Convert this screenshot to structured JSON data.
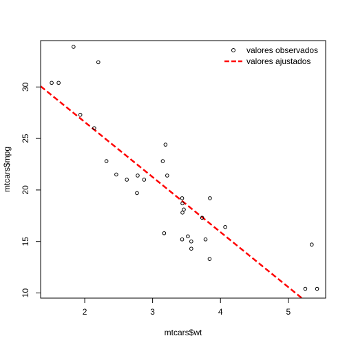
{
  "chart_data": {
    "type": "scatter",
    "title": "",
    "xlabel": "mtcars$wt",
    "ylabel": "mtcars$mpg",
    "xlim": [
      1.35,
      5.55
    ],
    "ylim": [
      9.5,
      34.5
    ],
    "x_ticks": [
      2,
      3,
      4,
      5
    ],
    "y_ticks": [
      10,
      15,
      20,
      25,
      30
    ],
    "grid": false,
    "legend_position": "top-right",
    "series": [
      {
        "name": "valores observados",
        "kind": "points",
        "marker": "open-circle",
        "color": "#000000",
        "points": [
          [
            1.513,
            30.4
          ],
          [
            1.615,
            30.4
          ],
          [
            1.835,
            33.9
          ],
          [
            1.935,
            27.3
          ],
          [
            2.14,
            26.0
          ],
          [
            2.2,
            32.4
          ],
          [
            2.32,
            22.8
          ],
          [
            2.465,
            21.5
          ],
          [
            2.62,
            21.0
          ],
          [
            2.77,
            19.7
          ],
          [
            2.78,
            21.4
          ],
          [
            2.875,
            21.0
          ],
          [
            3.15,
            22.8
          ],
          [
            3.17,
            15.8
          ],
          [
            3.19,
            24.4
          ],
          [
            3.215,
            21.4
          ],
          [
            3.435,
            19.2
          ],
          [
            3.44,
            18.7
          ],
          [
            3.44,
            17.8
          ],
          [
            3.46,
            18.1
          ],
          [
            3.52,
            15.5
          ],
          [
            3.57,
            15.0
          ],
          [
            3.57,
            14.3
          ],
          [
            3.73,
            17.3
          ],
          [
            3.78,
            15.2
          ],
          [
            3.84,
            13.3
          ],
          [
            3.845,
            19.2
          ],
          [
            4.07,
            16.4
          ],
          [
            5.25,
            10.4
          ],
          [
            5.345,
            14.7
          ],
          [
            5.424,
            10.4
          ],
          [
            3.435,
            15.2
          ]
        ]
      },
      {
        "name": "valores ajustados",
        "kind": "line",
        "style": "dashed",
        "color": "#ff0000",
        "intercept": 37.285,
        "slope": -5.344
      }
    ]
  }
}
